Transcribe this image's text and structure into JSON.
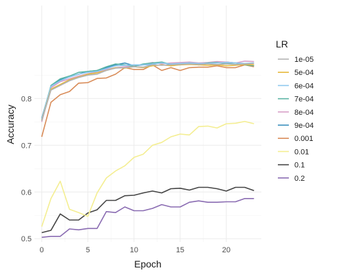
{
  "chart_data": {
    "type": "line",
    "xlabel": "Epoch",
    "ylabel": "Accuracy",
    "xlim": [
      -0.8,
      23.8
    ],
    "ylim": [
      0.493,
      0.999
    ],
    "x_ticks": [
      0,
      5,
      10,
      15,
      20
    ],
    "y_ticks": [
      0.5,
      0.6,
      0.7,
      0.8
    ],
    "grid": true,
    "legend": {
      "title": "LR",
      "position": "right"
    },
    "x": [
      0,
      1,
      2,
      3,
      4,
      5,
      6,
      7,
      8,
      9,
      10,
      11,
      12,
      13,
      14,
      15,
      16,
      17,
      18,
      19,
      20,
      21,
      22,
      23
    ],
    "series": [
      {
        "name": "1e-05",
        "color": "#b3b3b3",
        "values": [
          0.752,
          0.818,
          0.828,
          0.838,
          0.845,
          0.85,
          0.852,
          0.86,
          0.865,
          0.866,
          0.868,
          0.867,
          0.872,
          0.871,
          0.872,
          0.873,
          0.874,
          0.873,
          0.874,
          0.873,
          0.874,
          0.873,
          0.874,
          0.875
        ]
      },
      {
        "name": "5e-04",
        "color": "#e6b93d",
        "values": [
          0.753,
          0.82,
          0.83,
          0.84,
          0.846,
          0.852,
          0.855,
          0.86,
          0.866,
          0.865,
          0.868,
          0.866,
          0.87,
          0.872,
          0.87,
          0.872,
          0.873,
          0.872,
          0.871,
          0.872,
          0.87,
          0.871,
          0.873,
          0.872
        ]
      },
      {
        "name": "6e-04",
        "color": "#8ec9ef",
        "values": [
          0.756,
          0.826,
          0.838,
          0.846,
          0.852,
          0.856,
          0.858,
          0.864,
          0.87,
          0.871,
          0.872,
          0.872,
          0.874,
          0.876,
          0.874,
          0.875,
          0.876,
          0.875,
          0.875,
          0.876,
          0.877,
          0.876,
          0.875,
          0.876
        ]
      },
      {
        "name": "7e-04",
        "color": "#5ab4a4",
        "values": [
          0.755,
          0.828,
          0.842,
          0.848,
          0.856,
          0.858,
          0.86,
          0.868,
          0.874,
          0.872,
          0.869,
          0.874,
          0.876,
          0.878,
          0.873,
          0.874,
          0.876,
          0.874,
          0.876,
          0.877,
          0.875,
          0.876,
          0.872,
          0.87
        ]
      },
      {
        "name": "8e-04",
        "color": "#d8a0c8",
        "values": [
          0.75,
          0.823,
          0.836,
          0.842,
          0.848,
          0.853,
          0.857,
          0.862,
          0.866,
          0.868,
          0.87,
          0.873,
          0.877,
          0.874,
          0.876,
          0.877,
          0.878,
          0.876,
          0.877,
          0.879,
          0.878,
          0.876,
          0.88,
          0.879
        ]
      },
      {
        "name": "9e-04",
        "color": "#3b8fbd",
        "values": [
          0.758,
          0.826,
          0.84,
          0.846,
          0.852,
          0.858,
          0.86,
          0.866,
          0.872,
          0.876,
          0.87,
          0.872,
          0.873,
          0.878,
          0.872,
          0.873,
          0.874,
          0.872,
          0.875,
          0.878,
          0.878,
          0.876,
          0.874,
          0.871
        ]
      },
      {
        "name": "0.001",
        "color": "#d98c59",
        "values": [
          0.718,
          0.792,
          0.808,
          0.815,
          0.833,
          0.834,
          0.843,
          0.844,
          0.852,
          0.866,
          0.862,
          0.862,
          0.872,
          0.86,
          0.866,
          0.86,
          0.866,
          0.867,
          0.867,
          0.87,
          0.866,
          0.866,
          0.872,
          0.868
        ]
      },
      {
        "name": "0.01",
        "color": "#f4ee92",
        "values": [
          0.526,
          0.586,
          0.623,
          0.563,
          0.556,
          0.548,
          0.598,
          0.63,
          0.645,
          0.656,
          0.674,
          0.681,
          0.7,
          0.706,
          0.718,
          0.724,
          0.722,
          0.74,
          0.741,
          0.737,
          0.746,
          0.747,
          0.751,
          0.746
        ]
      },
      {
        "name": "0.1",
        "color": "#454545",
        "values": [
          0.513,
          0.518,
          0.553,
          0.54,
          0.54,
          0.555,
          0.562,
          0.582,
          0.582,
          0.592,
          0.593,
          0.598,
          0.602,
          0.598,
          0.607,
          0.608,
          0.604,
          0.61,
          0.61,
          0.607,
          0.602,
          0.61,
          0.61,
          0.603
        ]
      },
      {
        "name": "0.2",
        "color": "#8a6cb2",
        "values": [
          0.503,
          0.505,
          0.505,
          0.521,
          0.519,
          0.522,
          0.522,
          0.558,
          0.556,
          0.568,
          0.56,
          0.56,
          0.565,
          0.573,
          0.568,
          0.568,
          0.578,
          0.581,
          0.578,
          0.578,
          0.579,
          0.579,
          0.586,
          0.586
        ]
      }
    ]
  }
}
